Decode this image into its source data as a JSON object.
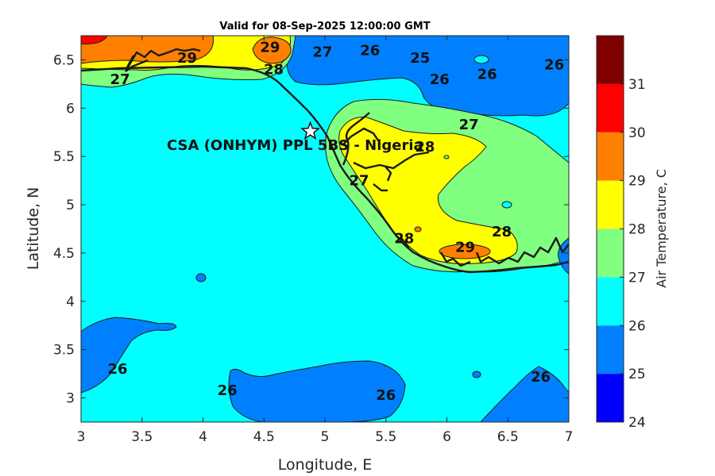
{
  "title": "Valid for 08-Sep-2025 12:00:00 GMT",
  "axes": {
    "xlabel": "Longitude, E",
    "ylabel": "Latitude, N",
    "xlim": [
      3,
      7
    ],
    "ylim": [
      2.75,
      6.75
    ],
    "xticks": [
      "3",
      "3.5",
      "4",
      "4.5",
      "5",
      "5.5",
      "6",
      "6.5",
      "7"
    ],
    "yticks": [
      "3",
      "3.5",
      "4",
      "4.5",
      "5",
      "5.5",
      "6",
      "6.5"
    ]
  },
  "colorbar": {
    "label": "Air Temperature, C",
    "ticks": [
      "24",
      "25",
      "26",
      "27",
      "28",
      "29",
      "30",
      "31"
    ],
    "colors": [
      "#0000ff",
      "#0080ff",
      "#00ffff",
      "#80ff80",
      "#ffff00",
      "#ff8000",
      "#ff0000",
      "#800000"
    ]
  },
  "site": {
    "name": "CSA (ONHYM) PPL 5BS - Nigeria",
    "lon": 4.88,
    "lat": 5.76,
    "marker": "star-icon"
  },
  "contour_labels": [
    {
      "text": "29",
      "lon": 3.87,
      "lat": 6.52
    },
    {
      "text": "29",
      "lon": 4.55,
      "lat": 6.63
    },
    {
      "text": "27",
      "lon": 4.98,
      "lat": 6.58
    },
    {
      "text": "26",
      "lon": 5.37,
      "lat": 6.6
    },
    {
      "text": "25",
      "lon": 5.78,
      "lat": 6.52
    },
    {
      "text": "26",
      "lon": 5.94,
      "lat": 6.3
    },
    {
      "text": "26",
      "lon": 6.33,
      "lat": 6.35
    },
    {
      "text": "26",
      "lon": 6.88,
      "lat": 6.45
    },
    {
      "text": "27",
      "lon": 3.32,
      "lat": 6.3
    },
    {
      "text": "28",
      "lon": 4.58,
      "lat": 6.4
    },
    {
      "text": "27",
      "lon": 6.18,
      "lat": 5.83
    },
    {
      "text": "28",
      "lon": 5.82,
      "lat": 5.6
    },
    {
      "text": "27",
      "lon": 5.28,
      "lat": 5.25
    },
    {
      "text": "28",
      "lon": 5.65,
      "lat": 4.65
    },
    {
      "text": "29",
      "lon": 6.15,
      "lat": 4.56
    },
    {
      "text": "28",
      "lon": 6.45,
      "lat": 4.72
    },
    {
      "text": "26",
      "lon": 3.3,
      "lat": 3.3
    },
    {
      "text": "26",
      "lon": 4.2,
      "lat": 3.08
    },
    {
      "text": "26",
      "lon": 5.5,
      "lat": 3.03
    },
    {
      "text": "26",
      "lon": 6.77,
      "lat": 3.22
    }
  ]
}
